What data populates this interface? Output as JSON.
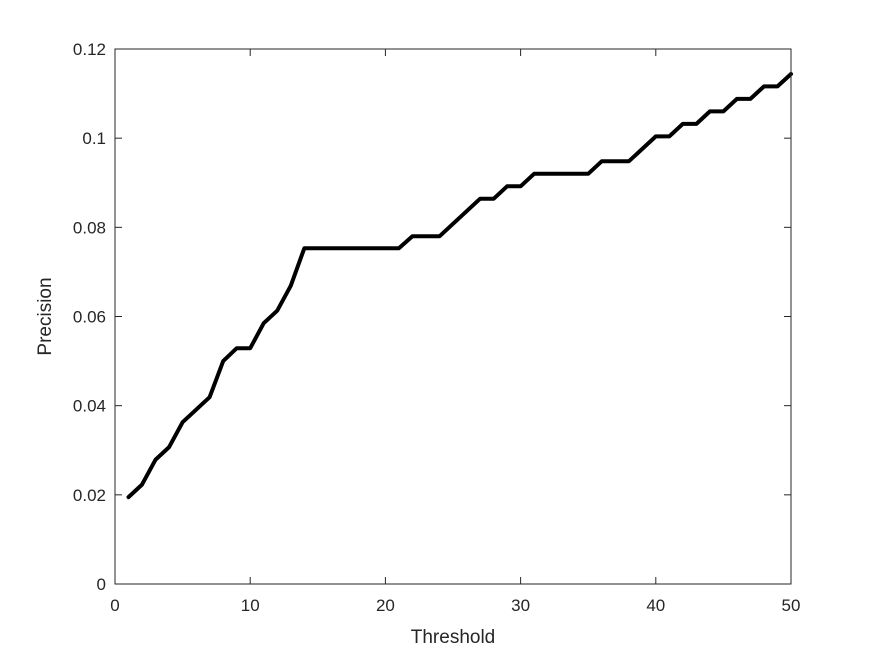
{
  "chart_data": {
    "type": "line",
    "title": "",
    "xlabel": "Threshold",
    "ylabel": "Precision",
    "xlim": [
      0,
      50
    ],
    "ylim": [
      0,
      0.12
    ],
    "x_ticks": [
      0,
      10,
      20,
      30,
      40,
      50
    ],
    "y_ticks": [
      0,
      0.02,
      0.04,
      0.06,
      0.08,
      0.1,
      0.12
    ],
    "x_tick_labels": [
      "0",
      "10",
      "20",
      "30",
      "40",
      "50"
    ],
    "y_tick_labels": [
      "0",
      "0.02",
      "0.04",
      "0.06",
      "0.08",
      "0.1",
      "0.12"
    ],
    "grid": false,
    "line_color": "#000000",
    "series": [
      {
        "x": [
          1,
          2,
          3,
          4,
          5,
          6,
          7,
          8,
          9,
          10,
          11,
          12,
          13,
          14,
          15,
          16,
          17,
          18,
          19,
          20,
          21,
          22,
          23,
          24,
          25,
          26,
          27,
          28,
          29,
          30,
          31,
          32,
          33,
          34,
          35,
          36,
          37,
          38,
          39,
          40,
          41,
          42,
          43,
          44,
          45,
          46,
          47,
          48,
          49,
          50
        ],
        "values": [
          0.0195,
          0.0223,
          0.0279,
          0.0307,
          0.0363,
          0.0391,
          0.0419,
          0.05,
          0.0529,
          0.0529,
          0.0585,
          0.0613,
          0.0669,
          0.0753,
          0.0753,
          0.0753,
          0.0753,
          0.0753,
          0.0753,
          0.0753,
          0.0753,
          0.078,
          0.078,
          0.078,
          0.0808,
          0.0836,
          0.0864,
          0.0864,
          0.0892,
          0.0892,
          0.092,
          0.092,
          0.092,
          0.092,
          0.092,
          0.0948,
          0.0948,
          0.0948,
          0.0976,
          0.1004,
          0.1004,
          0.1032,
          0.1032,
          0.106,
          0.106,
          0.1088,
          0.1088,
          0.1116,
          0.1116,
          0.1144
        ]
      }
    ]
  }
}
